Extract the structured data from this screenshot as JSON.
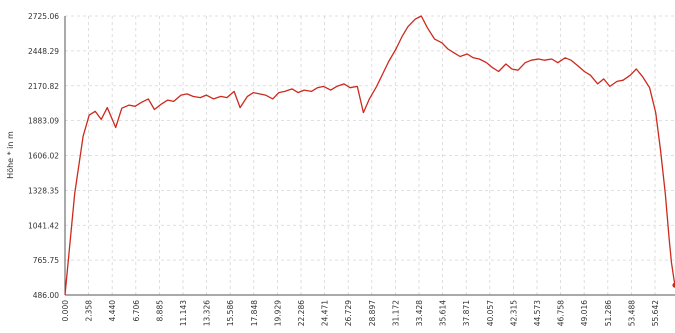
{
  "chart_data": {
    "type": "line",
    "title": "",
    "xlabel": "",
    "ylabel": "Höhe * in m",
    "ylim": [
      486.0,
      2725.06
    ],
    "xlim": [
      0,
      50.5
    ],
    "grid": true,
    "y_ticks": [
      "486.00",
      "765.75",
      "1041.42",
      "1328.35",
      "1606.02",
      "1883.09",
      "2170.82",
      "2448.29",
      "2725.06"
    ],
    "x_ticks": [
      "0.000",
      "2.358",
      "4.440",
      "6.706",
      "8.885",
      "11.143",
      "13.326",
      "15.586",
      "17.848",
      "19.929",
      "22.286",
      "24.471",
      "26.729",
      "28.897",
      "31.172",
      "33.428",
      "35.614",
      "37.871",
      "40.057",
      "42.315",
      "44.573",
      "46.758",
      "49.016",
      "51.286",
      "53.488",
      "55.642"
    ],
    "series": [
      {
        "color": "#cc2a1e",
        "x": [
          0.0,
          0.8,
          1.5,
          2.0,
          2.5,
          3.0,
          3.5,
          4.2,
          4.7,
          5.3,
          5.8,
          6.3,
          6.9,
          7.4,
          8.0,
          8.5,
          9.0,
          9.6,
          10.1,
          10.6,
          11.2,
          11.7,
          12.3,
          12.9,
          13.4,
          14.0,
          14.5,
          15.1,
          15.6,
          16.1,
          16.6,
          17.2,
          17.7,
          18.2,
          18.8,
          19.3,
          19.8,
          20.4,
          20.9,
          21.4,
          22.0,
          22.5,
          23.1,
          23.6,
          24.2,
          24.7,
          25.2,
          25.8,
          26.3,
          26.8,
          27.4,
          27.9,
          28.4,
          29.0,
          29.5,
          30.0,
          30.6,
          31.2,
          31.7,
          32.2,
          32.7,
          33.3,
          33.8,
          34.3,
          34.9,
          35.4,
          35.9,
          36.5,
          37.0,
          37.5,
          38.1,
          38.6,
          39.2,
          39.7,
          40.3,
          40.8,
          41.4,
          41.9,
          42.4,
          43.0,
          43.5,
          44.1,
          44.6,
          45.1,
          45.7,
          46.2,
          46.8,
          47.3,
          47.8,
          48.4,
          48.9,
          49.3,
          49.7,
          50.0,
          50.2,
          50.4,
          50.5
        ],
        "y": [
          486,
          1300,
          1760,
          1930,
          1960,
          1895,
          1990,
          1830,
          1985,
          2010,
          2000,
          2030,
          2060,
          1975,
          2020,
          2050,
          2040,
          2090,
          2100,
          2080,
          2070,
          2090,
          2060,
          2080,
          2070,
          2120,
          1990,
          2080,
          2110,
          2100,
          2090,
          2060,
          2110,
          2120,
          2140,
          2110,
          2130,
          2120,
          2150,
          2160,
          2130,
          2160,
          2180,
          2150,
          2160,
          1950,
          2060,
          2160,
          2260,
          2360,
          2460,
          2560,
          2640,
          2700,
          2725,
          2630,
          2540,
          2510,
          2460,
          2430,
          2400,
          2420,
          2390,
          2380,
          2350,
          2310,
          2280,
          2340,
          2300,
          2290,
          2350,
          2370,
          2380,
          2370,
          2380,
          2350,
          2390,
          2370,
          2330,
          2280,
          2250,
          2180,
          2220,
          2160,
          2200,
          2210,
          2250,
          2300,
          2240,
          2150,
          1950,
          1650,
          1300,
          950,
          750,
          620,
          565
        ]
      }
    ]
  }
}
